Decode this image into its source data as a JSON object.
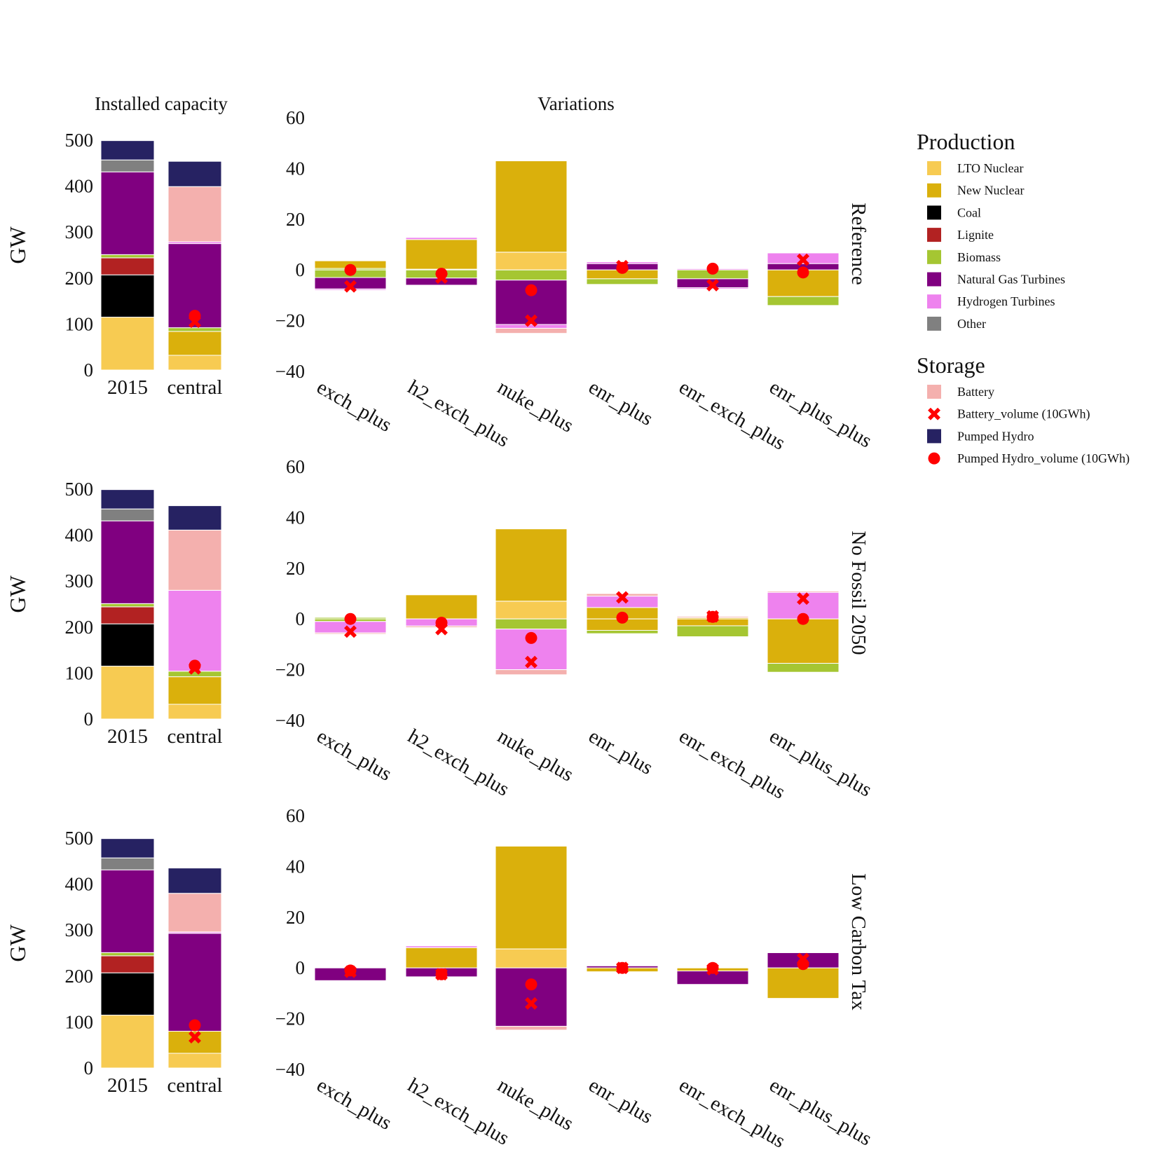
{
  "chart_data": {
    "type": "bar",
    "titles": {
      "left": "Installed capacity",
      "right": "Variations"
    },
    "ylabel": "GW",
    "colors": {
      "LTO Nuclear": "#F7CB52",
      "New Nuclear": "#DAB00C",
      "Coal": "#000000",
      "Lignite": "#B22222",
      "Biomass": "#A5C632",
      "Natural Gas Turbines": "#800080",
      "Hydrogen Turbines": "#EE82EE",
      "Other": "#808080",
      "Battery": "#F4B0AE",
      "Pumped Hydro": "#262262",
      "Marker": "#FF0000"
    },
    "legend": {
      "placement": "right",
      "production_title": "Production",
      "storage_title": "Storage",
      "production": [
        {
          "label": "LTO Nuclear",
          "key": "LTO Nuclear",
          "kind": "square"
        },
        {
          "label": "New Nuclear",
          "key": "New Nuclear",
          "kind": "square"
        },
        {
          "label": "Coal",
          "key": "Coal",
          "kind": "square"
        },
        {
          "label": "Lignite",
          "key": "Lignite",
          "kind": "square"
        },
        {
          "label": "Biomass",
          "key": "Biomass",
          "kind": "square"
        },
        {
          "label": "Natural Gas Turbines",
          "key": "Natural Gas Turbines",
          "kind": "square"
        },
        {
          "label": "Hydrogen Turbines",
          "key": "Hydrogen Turbines",
          "kind": "square"
        },
        {
          "label": "Other",
          "key": "Other",
          "kind": "square"
        }
      ],
      "storage": [
        {
          "label": "Battery",
          "key": "Battery",
          "kind": "square"
        },
        {
          "label": "Battery_volume (10GWh)",
          "key": "Marker",
          "kind": "cross"
        },
        {
          "label": "Pumped Hydro",
          "key": "Pumped Hydro",
          "kind": "square"
        },
        {
          "label": "Pumped Hydro_volume (10GWh)",
          "key": "Marker",
          "kind": "dot"
        }
      ]
    },
    "left_axis": {
      "ylim": [
        0,
        500
      ],
      "ticks": [
        "0",
        "100",
        "200",
        "300",
        "400",
        "500"
      ],
      "categories": [
        "2015",
        "central"
      ]
    },
    "right_axis": {
      "ylim": [
        -40,
        60
      ],
      "ticks": [
        "−40",
        "−20",
        "0",
        "20",
        "40",
        "60"
      ],
      "categories": [
        "exch_plus",
        "h2_exch_plus",
        "nuke_plus",
        "enr_plus",
        "enr_exch_plus",
        "enr_plus_plus"
      ]
    },
    "panels": [
      {
        "scenario": "Reference",
        "capacity": [
          {
            "category": "2015",
            "segments": [
              [
                "LTO Nuclear",
                115
              ],
              [
                "Coal",
                92
              ],
              [
                "Lignite",
                37
              ],
              [
                "Biomass",
                7
              ],
              [
                "Natural Gas Turbines",
                180
              ],
              [
                "Other",
                26
              ],
              [
                "Pumped Hydro",
                42
              ]
            ]
          },
          {
            "category": "central",
            "segments": [
              [
                "LTO Nuclear",
                32
              ],
              [
                "New Nuclear",
                52
              ],
              [
                "Biomass",
                8
              ],
              [
                "Natural Gas Turbines",
                183
              ],
              [
                "Hydrogen Turbines",
                4
              ],
              [
                "Battery",
                120
              ],
              [
                "Pumped Hydro",
                55
              ]
            ],
            "battery_volume": 105,
            "pumped_volume": 118
          }
        ],
        "variations": [
          {
            "category": "exch_plus",
            "pos": [
              [
                "Biomass",
                0.6
              ],
              [
                "New Nuclear",
                3.0
              ]
            ],
            "neg": [
              [
                "Biomass",
                -3.0
              ],
              [
                "Natural Gas Turbines",
                -4.5
              ],
              [
                "Hydrogen Turbines",
                -0.5
              ]
            ],
            "battery_volume": -6.5,
            "pumped_volume": 0
          },
          {
            "category": "h2_exch_plus",
            "pos": [
              [
                "Biomass",
                0.3
              ],
              [
                "New Nuclear",
                11.7
              ],
              [
                "Hydrogen Turbines",
                0.8
              ]
            ],
            "neg": [
              [
                "Biomass",
                -3.2
              ],
              [
                "Natural Gas Turbines",
                -2.8
              ]
            ],
            "battery_volume": -3,
            "pumped_volume": -1.5
          },
          {
            "category": "nuke_plus",
            "pos": [
              [
                "LTO Nuclear",
                7
              ],
              [
                "New Nuclear",
                36
              ]
            ],
            "neg": [
              [
                "Biomass",
                -4
              ],
              [
                "Natural Gas Turbines",
                -17.5
              ],
              [
                "Hydrogen Turbines",
                -1.5
              ],
              [
                "Battery",
                -2
              ]
            ],
            "battery_volume": -20,
            "pumped_volume": -8
          },
          {
            "category": "enr_plus",
            "pos": [
              [
                "Natural Gas Turbines",
                2.5
              ],
              [
                "Hydrogen Turbines",
                0.7
              ]
            ],
            "neg": [
              [
                "New Nuclear",
                -3.5
              ],
              [
                "Biomass",
                -2.2
              ]
            ],
            "battery_volume": 1.5,
            "pumped_volume": 0.8
          },
          {
            "category": "enr_exch_plus",
            "pos": [
              [
                "Hydrogen Turbines",
                0.5
              ]
            ],
            "neg": [
              [
                "Biomass",
                -3.5
              ],
              [
                "Natural Gas Turbines",
                -3.5
              ],
              [
                "Hydrogen Turbines",
                -0.5
              ]
            ],
            "battery_volume": -6,
            "pumped_volume": 0.5
          },
          {
            "category": "enr_plus_plus",
            "pos": [
              [
                "Natural Gas Turbines",
                2.5
              ],
              [
                "Hydrogen Turbines",
                4.2
              ]
            ],
            "neg": [
              [
                "New Nuclear",
                -10.5
              ],
              [
                "Biomass",
                -3.5
              ]
            ],
            "battery_volume": 4,
            "pumped_volume": -1
          }
        ]
      },
      {
        "scenario": "No Fossil 2050",
        "capacity": [
          {
            "category": "2015",
            "segments": [
              [
                "LTO Nuclear",
                115
              ],
              [
                "Coal",
                92
              ],
              [
                "Lignite",
                37
              ],
              [
                "Biomass",
                7
              ],
              [
                "Natural Gas Turbines",
                180
              ],
              [
                "Other",
                26
              ],
              [
                "Pumped Hydro",
                42
              ]
            ]
          },
          {
            "category": "central",
            "segments": [
              [
                "LTO Nuclear",
                32
              ],
              [
                "New Nuclear",
                60
              ],
              [
                "Biomass",
                12
              ],
              [
                "Hydrogen Turbines",
                176
              ],
              [
                "Battery",
                131
              ],
              [
                "Pumped Hydro",
                53
              ]
            ],
            "battery_volume": 110,
            "pumped_volume": 116
          }
        ],
        "variations": [
          {
            "category": "exch_plus",
            "pos": [
              [
                "Biomass",
                0.6
              ]
            ],
            "neg": [
              [
                "Biomass",
                -1.0
              ],
              [
                "Hydrogen Turbines",
                -4.5
              ],
              [
                "Battery",
                -0.5
              ]
            ],
            "battery_volume": -5,
            "pumped_volume": 0
          },
          {
            "category": "h2_exch_plus",
            "pos": [
              [
                "New Nuclear",
                9.5
              ]
            ],
            "neg": [
              [
                "Hydrogen Turbines",
                -2.8
              ],
              [
                "Battery",
                -0.6
              ]
            ],
            "battery_volume": -4,
            "pumped_volume": -1.5
          },
          {
            "category": "nuke_plus",
            "pos": [
              [
                "LTO Nuclear",
                7
              ],
              [
                "New Nuclear",
                28.5
              ]
            ],
            "neg": [
              [
                "Biomass",
                -4
              ],
              [
                "Hydrogen Turbines",
                -16
              ],
              [
                "Battery",
                -2
              ]
            ],
            "battery_volume": -17,
            "pumped_volume": -7.5
          },
          {
            "category": "enr_plus",
            "pos": [
              [
                "New Nuclear",
                4.5
              ],
              [
                "Hydrogen Turbines",
                4.5
              ],
              [
                "Battery",
                1.0
              ]
            ],
            "neg": [
              [
                "New Nuclear",
                -4.5
              ],
              [
                "Biomass",
                -1.3
              ]
            ],
            "battery_volume": 8.5,
            "pumped_volume": 0.5
          },
          {
            "category": "enr_exch_plus",
            "pos": [
              [
                "New Nuclear",
                0.5
              ],
              [
                "Battery",
                0.5
              ]
            ],
            "neg": [
              [
                "New Nuclear",
                -2.7
              ],
              [
                "Biomass",
                -4.3
              ]
            ],
            "battery_volume": 1,
            "pumped_volume": 0.8
          },
          {
            "category": "enr_plus_plus",
            "pos": [
              [
                "Hydrogen Turbines",
                10.5
              ],
              [
                "Battery",
                0.5
              ]
            ],
            "neg": [
              [
                "New Nuclear",
                -17.5
              ],
              [
                "Biomass",
                -3.5
              ]
            ],
            "battery_volume": 8,
            "pumped_volume": 0
          }
        ]
      },
      {
        "scenario": "Low Carbon Tax",
        "capacity": [
          {
            "category": "2015",
            "segments": [
              [
                "LTO Nuclear",
                115
              ],
              [
                "Coal",
                92
              ],
              [
                "Lignite",
                37
              ],
              [
                "Biomass",
                7
              ],
              [
                "Natural Gas Turbines",
                180
              ],
              [
                "Other",
                26
              ],
              [
                "Pumped Hydro",
                42
              ]
            ]
          },
          {
            "category": "central",
            "segments": [
              [
                "LTO Nuclear",
                32
              ],
              [
                "New Nuclear",
                48
              ],
              [
                "Natural Gas Turbines",
                213
              ],
              [
                "Hydrogen Turbines",
                3
              ],
              [
                "Battery",
                84
              ],
              [
                "Pumped Hydro",
                55
              ]
            ],
            "battery_volume": 67,
            "pumped_volume": 93
          }
        ],
        "variations": [
          {
            "category": "exch_plus",
            "pos": [],
            "neg": [
              [
                "Natural Gas Turbines",
                -5
              ]
            ],
            "battery_volume": -1.5,
            "pumped_volume": -1
          },
          {
            "category": "h2_exch_plus",
            "pos": [
              [
                "New Nuclear",
                8
              ],
              [
                "Hydrogen Turbines",
                0.7
              ]
            ],
            "neg": [
              [
                "Natural Gas Turbines",
                -3.5
              ]
            ],
            "battery_volume": -2.5,
            "pumped_volume": -2.5
          },
          {
            "category": "nuke_plus",
            "pos": [
              [
                "LTO Nuclear",
                7.5
              ],
              [
                "New Nuclear",
                40.5
              ]
            ],
            "neg": [
              [
                "Natural Gas Turbines",
                -23
              ],
              [
                "Battery",
                -1.5
              ]
            ],
            "battery_volume": -14,
            "pumped_volume": -6.5
          },
          {
            "category": "enr_plus",
            "pos": [
              [
                "Natural Gas Turbines",
                0.8
              ]
            ],
            "neg": [
              [
                "New Nuclear",
                -1.5
              ]
            ],
            "battery_volume": 0,
            "pumped_volume": 0
          },
          {
            "category": "enr_exch_plus",
            "pos": [],
            "neg": [
              [
                "New Nuclear",
                -1.2
              ],
              [
                "Natural Gas Turbines",
                -5.3
              ]
            ],
            "battery_volume": -0.5,
            "pumped_volume": 0
          },
          {
            "category": "enr_plus_plus",
            "pos": [
              [
                "Natural Gas Turbines",
                6
              ]
            ],
            "neg": [
              [
                "New Nuclear",
                -12
              ]
            ],
            "battery_volume": 3.5,
            "pumped_volume": 1.5
          }
        ]
      }
    ]
  }
}
